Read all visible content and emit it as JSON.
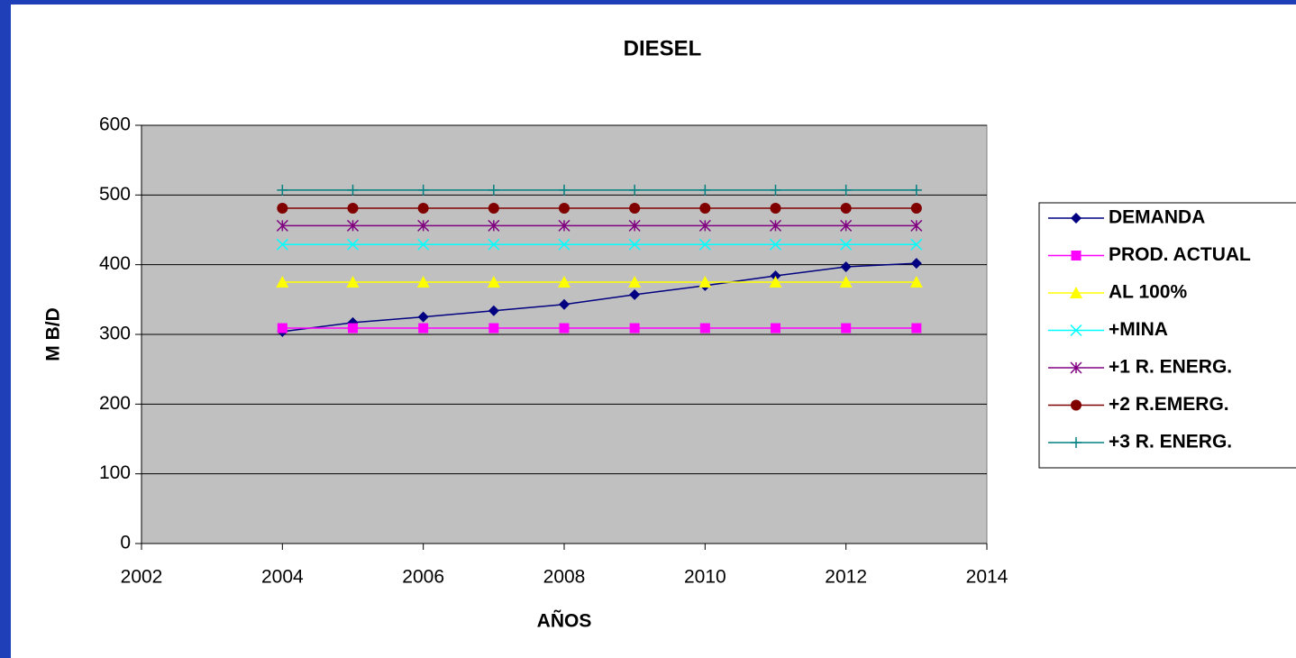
{
  "chart_data": {
    "type": "line",
    "title": "DIESEL",
    "x_label": "AÑOS",
    "y_label": "M B/D",
    "x": [
      2004,
      2005,
      2006,
      2007,
      2008,
      2009,
      2010,
      2011,
      2012,
      2013
    ],
    "series": [
      {
        "name": "DEMANDA",
        "color": "#000080",
        "marker": "diamond",
        "values": [
          304,
          317,
          325,
          334,
          343,
          357,
          370,
          384,
          397,
          402
        ]
      },
      {
        "name": "PROD. ACTUAL",
        "color": "#ff00ff",
        "marker": "square",
        "values": [
          309,
          309,
          309,
          309,
          309,
          309,
          309,
          309,
          309,
          309
        ]
      },
      {
        "name": "AL 100%",
        "color": "#ffff00",
        "marker": "triangle",
        "values": [
          375,
          375,
          375,
          375,
          375,
          375,
          375,
          375,
          375,
          375
        ]
      },
      {
        "name": "+MINA",
        "color": "#00ffff",
        "marker": "x",
        "values": [
          429,
          429,
          429,
          429,
          429,
          429,
          429,
          429,
          429,
          429
        ]
      },
      {
        "name": "+1 R. ENERG.",
        "color": "#800080",
        "marker": "asterisk",
        "values": [
          456,
          456,
          456,
          456,
          456,
          456,
          456,
          456,
          456,
          456
        ]
      },
      {
        "name": "+2 R.EMERG.",
        "color": "#800000",
        "marker": "circle",
        "values": [
          481,
          481,
          481,
          481,
          481,
          481,
          481,
          481,
          481,
          481
        ]
      },
      {
        "name": "+3 R. ENERG.",
        "color": "#008080",
        "marker": "plus",
        "values": [
          507,
          507,
          507,
          507,
          507,
          507,
          507,
          507,
          507,
          507
        ]
      }
    ],
    "xlim": [
      2002,
      2014
    ],
    "xticks": [
      2002,
      2004,
      2006,
      2008,
      2010,
      2012,
      2014
    ],
    "ylim": [
      0,
      600
    ],
    "yticks": [
      0,
      100,
      200,
      300,
      400,
      500,
      600
    ],
    "grid": true,
    "legend": "right",
    "plot_background": "#c0c0c0"
  }
}
